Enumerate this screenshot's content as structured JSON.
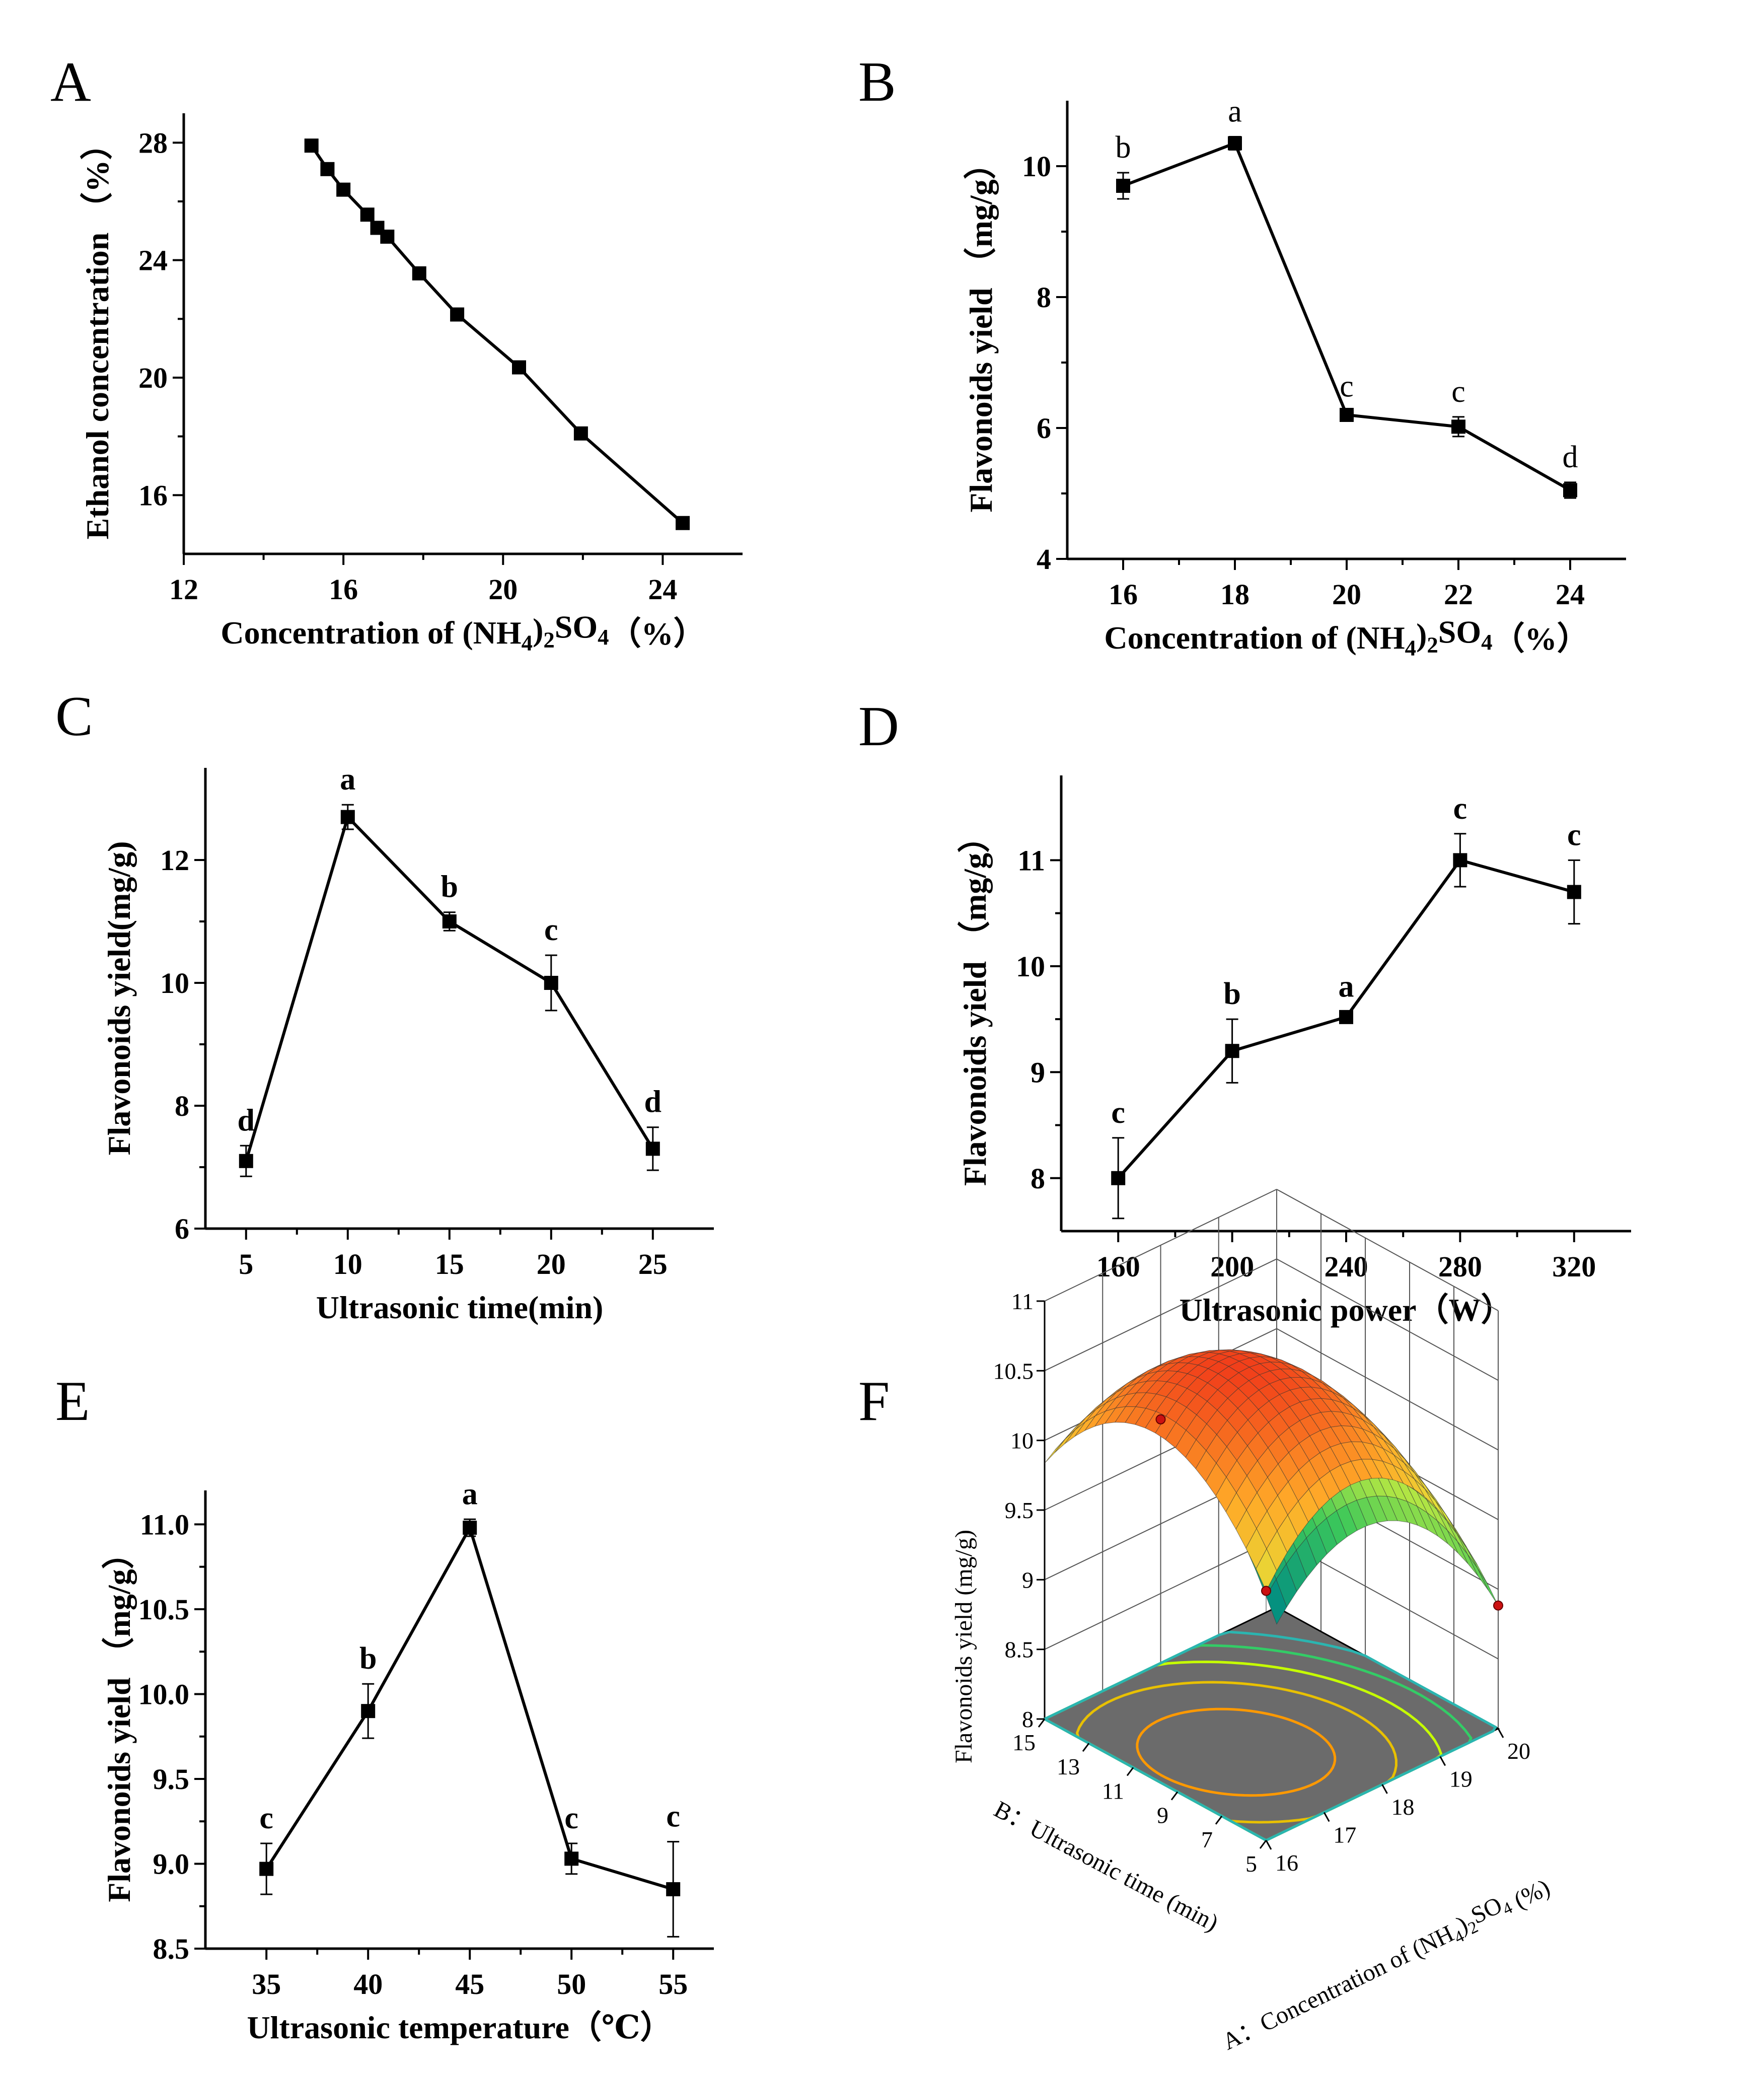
{
  "chart_data": [
    {
      "panel": "A",
      "type": "line",
      "x": [
        15.2,
        15.6,
        16.0,
        16.6,
        16.85,
        17.1,
        17.9,
        18.85,
        20.4,
        21.95,
        24.5
      ],
      "y": [
        27.9,
        27.1,
        26.4,
        25.55,
        25.1,
        24.8,
        23.55,
        22.15,
        20.35,
        18.1,
        15.05
      ],
      "xlabel": "Concentration of (NH4)2SO4（%）",
      "ylabel": "Ethanol concentration （%）",
      "xticks": [
        12,
        16,
        20,
        24
      ],
      "yticks": [
        16,
        20,
        24,
        28
      ],
      "xlim": [
        12,
        26
      ],
      "ylim": [
        14,
        29
      ]
    },
    {
      "panel": "B",
      "type": "line",
      "x": [
        16,
        18,
        20,
        22,
        24
      ],
      "y": [
        9.7,
        10.35,
        6.2,
        6.02,
        5.05
      ],
      "err": [
        0.2,
        0.1,
        0.05,
        0.15,
        0.12
      ],
      "letters": [
        "b",
        "a",
        "c",
        "c",
        "d"
      ],
      "xlabel": "Concentration of (NH4)2SO4（%）",
      "ylabel": "Flavonoids yield （mg/g）",
      "xticks": [
        16,
        18,
        20,
        22,
        24
      ],
      "yticks": [
        4,
        6,
        8,
        10
      ],
      "xlim": [
        15,
        25
      ],
      "ylim": [
        4,
        11
      ]
    },
    {
      "panel": "C",
      "type": "line",
      "x": [
        5,
        10,
        15,
        20,
        25
      ],
      "y": [
        7.1,
        12.7,
        11.0,
        10.0,
        7.3
      ],
      "err": [
        0.25,
        0.2,
        0.15,
        0.45,
        0.35
      ],
      "letters": [
        "d",
        "a",
        "b",
        "c",
        "d"
      ],
      "xlabel": "Ultrasonic time(min)",
      "ylabel": "Flavonoids yield(mg/g)",
      "xticks": [
        5,
        10,
        15,
        20,
        25
      ],
      "yticks": [
        6,
        8,
        10,
        12
      ],
      "xlim": [
        3,
        28
      ],
      "ylim": [
        6,
        13.5
      ]
    },
    {
      "panel": "D",
      "type": "line",
      "x": [
        160,
        200,
        240,
        280,
        320
      ],
      "y": [
        8.0,
        9.2,
        9.52,
        11.0,
        10.7
      ],
      "err": [
        0.38,
        0.3,
        0.05,
        0.25,
        0.3
      ],
      "letters": [
        "c",
        "b",
        "a",
        "c",
        "c"
      ],
      "xlabel": "Ultrasonic power（W）",
      "ylabel": "Flavonoids yield （mg/g）",
      "xticks": [
        160,
        200,
        240,
        280,
        320
      ],
      "yticks": [
        8,
        9,
        10,
        11
      ],
      "xlim": [
        140,
        340
      ],
      "ylim": [
        7.5,
        11.8
      ]
    },
    {
      "panel": "E",
      "type": "line",
      "x": [
        35,
        40,
        45,
        50,
        55
      ],
      "y": [
        8.97,
        9.9,
        10.98,
        9.03,
        8.85
      ],
      "err": [
        0.15,
        0.16,
        0.05,
        0.09,
        0.28
      ],
      "letters": [
        "c",
        "b",
        "a",
        "c",
        "c"
      ],
      "xlabel": "Ultrasonic temperature（℃）",
      "ylabel": "Flavonoids yield （mg/g）",
      "xticks": [
        35,
        40,
        45,
        50,
        55
      ],
      "yticks": [
        "8.5",
        "9.0",
        "9.5",
        "10.0",
        "10.5",
        "11.0"
      ],
      "xlim": [
        32,
        57
      ],
      "ylim": [
        8.5,
        11.2
      ]
    },
    {
      "panel": "F",
      "type": "surface",
      "zlabel": "Flavonoids yield (mg/g)",
      "zticks": [
        "8",
        "8.5",
        "9",
        "9.5",
        "10",
        "10.5",
        "11"
      ],
      "xaxis_label": "A：Concentration of (NH4)2SO4 (%)",
      "xticks": [
        "16",
        "17",
        "18",
        "19",
        "20"
      ],
      "yaxis_label": "B：Ultrasonic time (min)",
      "yticks": [
        "15",
        "13",
        "11",
        "9",
        "7",
        "5"
      ],
      "zrange": [
        8,
        11
      ]
    }
  ],
  "panels": {
    "A": "A",
    "B": "B",
    "C": "C",
    "D": "D",
    "E": "E",
    "F": "F"
  }
}
